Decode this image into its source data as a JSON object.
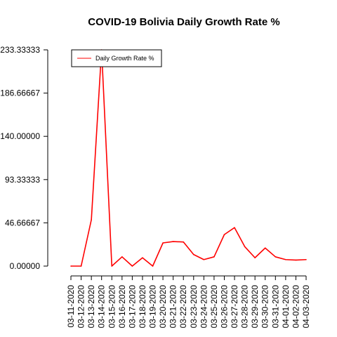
{
  "chart_data": {
    "type": "line",
    "title": "COVID-19 Bolivia Daily Growth Rate %",
    "xlabel": "",
    "ylabel": "",
    "categories": [
      "03-11-2020",
      "03-12-2020",
      "03-13-2020",
      "03-14-2020",
      "03-15-2020",
      "03-16-2020",
      "03-17-2020",
      "03-18-2020",
      "03-19-2020",
      "03-20-2020",
      "03-21-2020",
      "03-22-2020",
      "03-23-2020",
      "03-24-2020",
      "03-25-2020",
      "03-26-2020",
      "03-27-2020",
      "03-28-2020",
      "03-29-2020",
      "03-30-2020",
      "03-31-2020",
      "04-01-2020",
      "04-02-2020",
      "04-03-2020"
    ],
    "series": [
      {
        "name": "Daily Growth Rate %",
        "color": "#ff0000",
        "values": [
          0,
          0,
          50,
          233.33333,
          0,
          10.0,
          0,
          9.0,
          0,
          25.0,
          26.5,
          26.0,
          12.5,
          7.0,
          10.0,
          34.0,
          41.5,
          21.0,
          9.0,
          19.5,
          10.0,
          7.0,
          6.5,
          7.0
        ]
      }
    ],
    "yticks": [
      "0.00000",
      "46.66667",
      "93.33333",
      "140.00000",
      "186.66667",
      "233.33333"
    ],
    "ytick_values": [
      0,
      46.66667,
      93.33333,
      140.0,
      186.66667,
      233.33333
    ],
    "ylim": [
      0,
      233.33333
    ],
    "grid": false,
    "legend": "top-left"
  }
}
